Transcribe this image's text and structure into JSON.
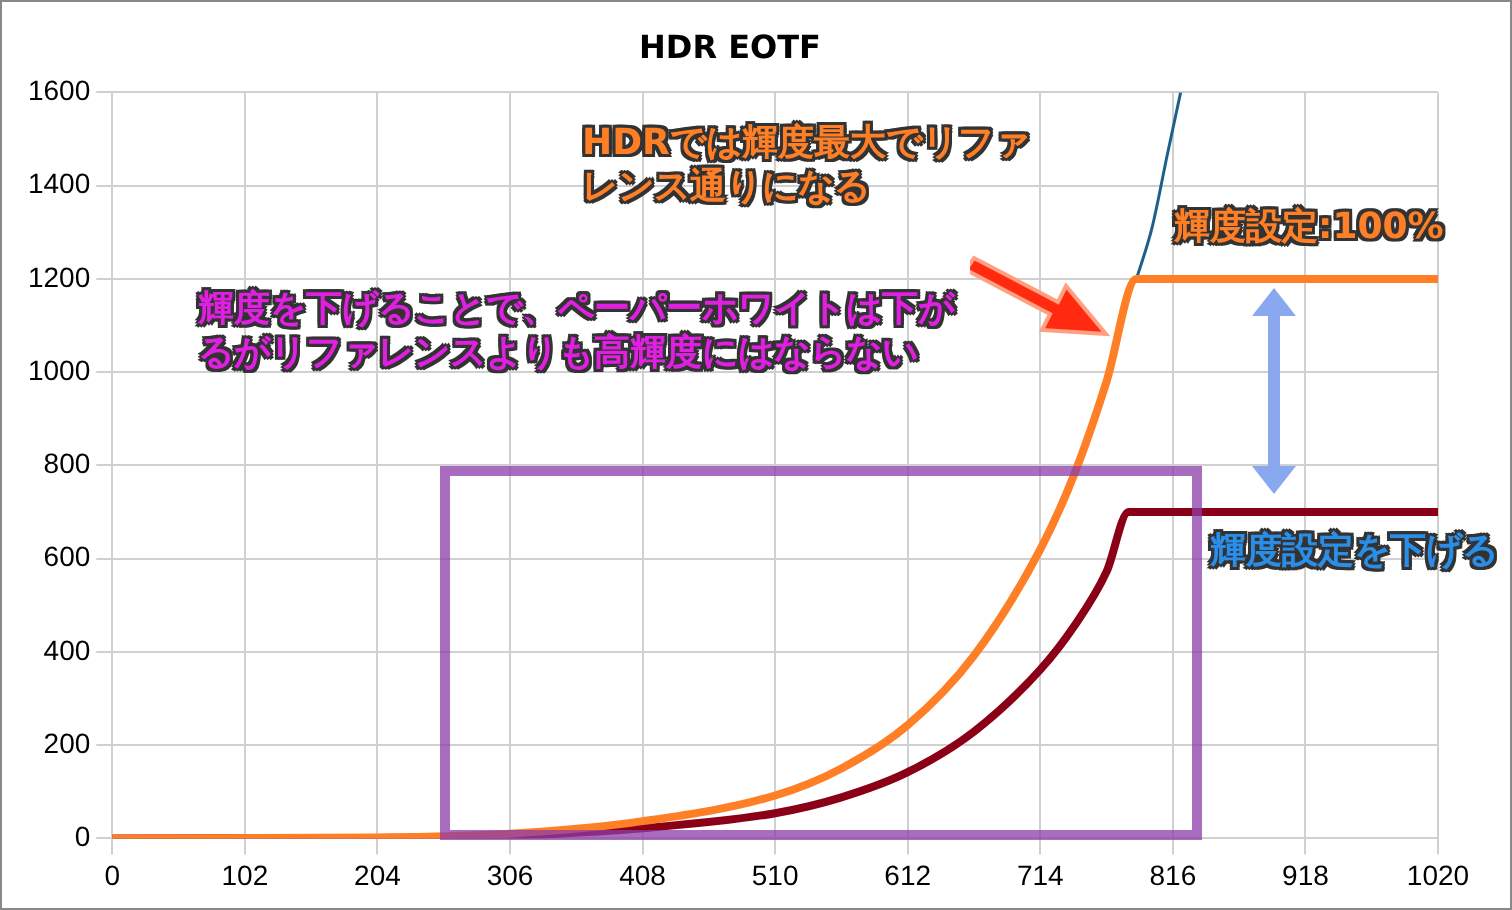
{
  "chart_data": {
    "type": "line",
    "title": "HDR EOTF",
    "xlim": [
      0,
      1020
    ],
    "xticks": [
      0,
      102,
      204,
      306,
      408,
      510,
      612,
      714,
      816,
      918,
      1020
    ],
    "ylim": [
      0,
      1600
    ],
    "yticks": [
      0,
      200,
      400,
      600,
      800,
      1000,
      1200,
      1400,
      1600
    ],
    "grid": true,
    "legend": false,
    "marker": "none",
    "line_style": "solid",
    "series": [
      {
        "color": "#ff7f27",
        "x": [
          0,
          204,
          306,
          408,
          510,
          561,
          612,
          663,
          714,
          740,
          765,
          788,
          1020
        ],
        "values": [
          0,
          2,
          10,
          37,
          92,
          150,
          243,
          392,
          620,
          780,
          980,
          1200,
          1200
        ]
      },
      {
        "color": "#8b0016",
        "x": [
          0,
          204,
          306,
          408,
          510,
          561,
          612,
          663,
          714,
          740,
          765,
          782,
          1020
        ],
        "values": [
          0,
          1,
          6,
          22,
          54,
          88,
          142,
          229,
          362,
          455,
          572,
          700,
          700
        ]
      },
      {
        "color": "#1f5f8b",
        "x": [
          788,
          800,
          812,
          822
        ],
        "values": [
          1200,
          1310,
          1470,
          1600
        ]
      }
    ],
    "annotations": [
      "HDRでは輝度最大でリファレンス通りになる",
      "輝度設定:100%",
      "輝度を下げることで、ペーパーホワイトは下がるがリファレンスよりも高輝度にはならない",
      "輝度設定を下げる"
    ]
  }
}
